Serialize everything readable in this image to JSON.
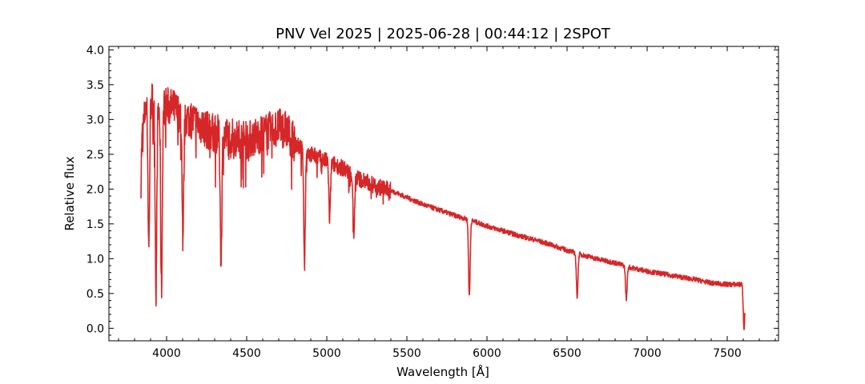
{
  "chart_data": {
    "type": "line",
    "title": "PNV Vel 2025 | 2025-06-28 | 00:44:12 | 2SPOT",
    "xlabel": "Wavelength [Å]",
    "ylabel": "Relative flux",
    "xlim": [
      3640,
      7820
    ],
    "ylim": [
      -0.18,
      4.05
    ],
    "xticks": [
      4000,
      4500,
      5000,
      5500,
      6000,
      6500,
      7000,
      7500
    ],
    "xtick_labels": [
      "4000",
      "4500",
      "5000",
      "5500",
      "6000",
      "6500",
      "7000",
      "7500"
    ],
    "yticks": [
      0.0,
      0.5,
      1.0,
      1.5,
      2.0,
      2.5,
      3.0,
      3.5,
      4.0
    ],
    "ytick_labels": [
      "0.0",
      "0.5",
      "1.0",
      "1.5",
      "2.0",
      "2.5",
      "3.0",
      "3.5",
      "4.0"
    ],
    "x_minor_step": 100,
    "y_minor_step": 0.1,
    "grid": false,
    "ticks_direction": "in",
    "series": [
      {
        "color": "#d62728",
        "continuum": [
          [
            3840,
            2.6
          ],
          [
            3870,
            3.2
          ],
          [
            3900,
            3.3
          ],
          [
            3950,
            3.15
          ],
          [
            4000,
            3.2
          ],
          [
            4050,
            3.15
          ],
          [
            4100,
            3.05
          ],
          [
            4150,
            3.0
          ],
          [
            4200,
            2.95
          ],
          [
            4250,
            2.85
          ],
          [
            4300,
            2.8
          ],
          [
            4400,
            2.75
          ],
          [
            4500,
            2.7
          ],
          [
            4600,
            2.8
          ],
          [
            4700,
            2.88
          ],
          [
            4750,
            2.85
          ],
          [
            4800,
            2.65
          ],
          [
            4900,
            2.5
          ],
          [
            5000,
            2.4
          ],
          [
            5100,
            2.3
          ],
          [
            5200,
            2.15
          ],
          [
            5300,
            2.05
          ],
          [
            5400,
            1.98
          ],
          [
            5500,
            1.88
          ],
          [
            5600,
            1.78
          ],
          [
            5700,
            1.7
          ],
          [
            5800,
            1.62
          ],
          [
            5900,
            1.55
          ],
          [
            6000,
            1.47
          ],
          [
            6100,
            1.4
          ],
          [
            6200,
            1.33
          ],
          [
            6300,
            1.27
          ],
          [
            6400,
            1.2
          ],
          [
            6500,
            1.12
          ],
          [
            6600,
            1.05
          ],
          [
            6700,
            0.99
          ],
          [
            6800,
            0.94
          ],
          [
            6900,
            0.87
          ],
          [
            7000,
            0.82
          ],
          [
            7100,
            0.78
          ],
          [
            7200,
            0.74
          ],
          [
            7300,
            0.7
          ],
          [
            7400,
            0.65
          ],
          [
            7500,
            0.63
          ],
          [
            7580,
            0.63
          ],
          [
            7610,
            0.65
          ]
        ],
        "absorption_lines": [
          [
            3835,
            1.85
          ],
          [
            3889,
            1.15
          ],
          [
            3934,
            0.56
          ],
          [
            3968,
            0.56
          ],
          [
            4102,
            1.3
          ],
          [
            4340,
            1.03
          ],
          [
            4861,
            1.01
          ],
          [
            5018,
            1.55
          ],
          [
            5169,
            1.37
          ],
          [
            5890,
            0.46
          ],
          [
            6563,
            0.46
          ],
          [
            6870,
            0.42
          ],
          [
            7605,
            0.0
          ]
        ]
      }
    ]
  }
}
